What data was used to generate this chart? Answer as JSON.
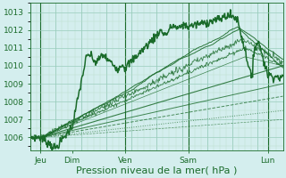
{
  "bg_color": "#d4eeee",
  "grid_color_major": "#99ccbb",
  "grid_color_minor": "#bbddcc",
  "line_color": "#1a6b2a",
  "xlabel": "Pression niveau de la mer( hPa )",
  "xlabel_fontsize": 8,
  "ylim": [
    1005.3,
    1013.5
  ],
  "yticks": [
    1006,
    1007,
    1008,
    1009,
    1010,
    1011,
    1012,
    1013
  ],
  "xtick_labels": [
    "Jeu",
    "Dim",
    "Ven",
    "Sam",
    "Lun"
  ],
  "xtick_positions": [
    0.04,
    0.165,
    0.375,
    0.625,
    0.94
  ],
  "x_vlines": [
    0.04,
    0.375,
    0.625,
    0.94
  ]
}
